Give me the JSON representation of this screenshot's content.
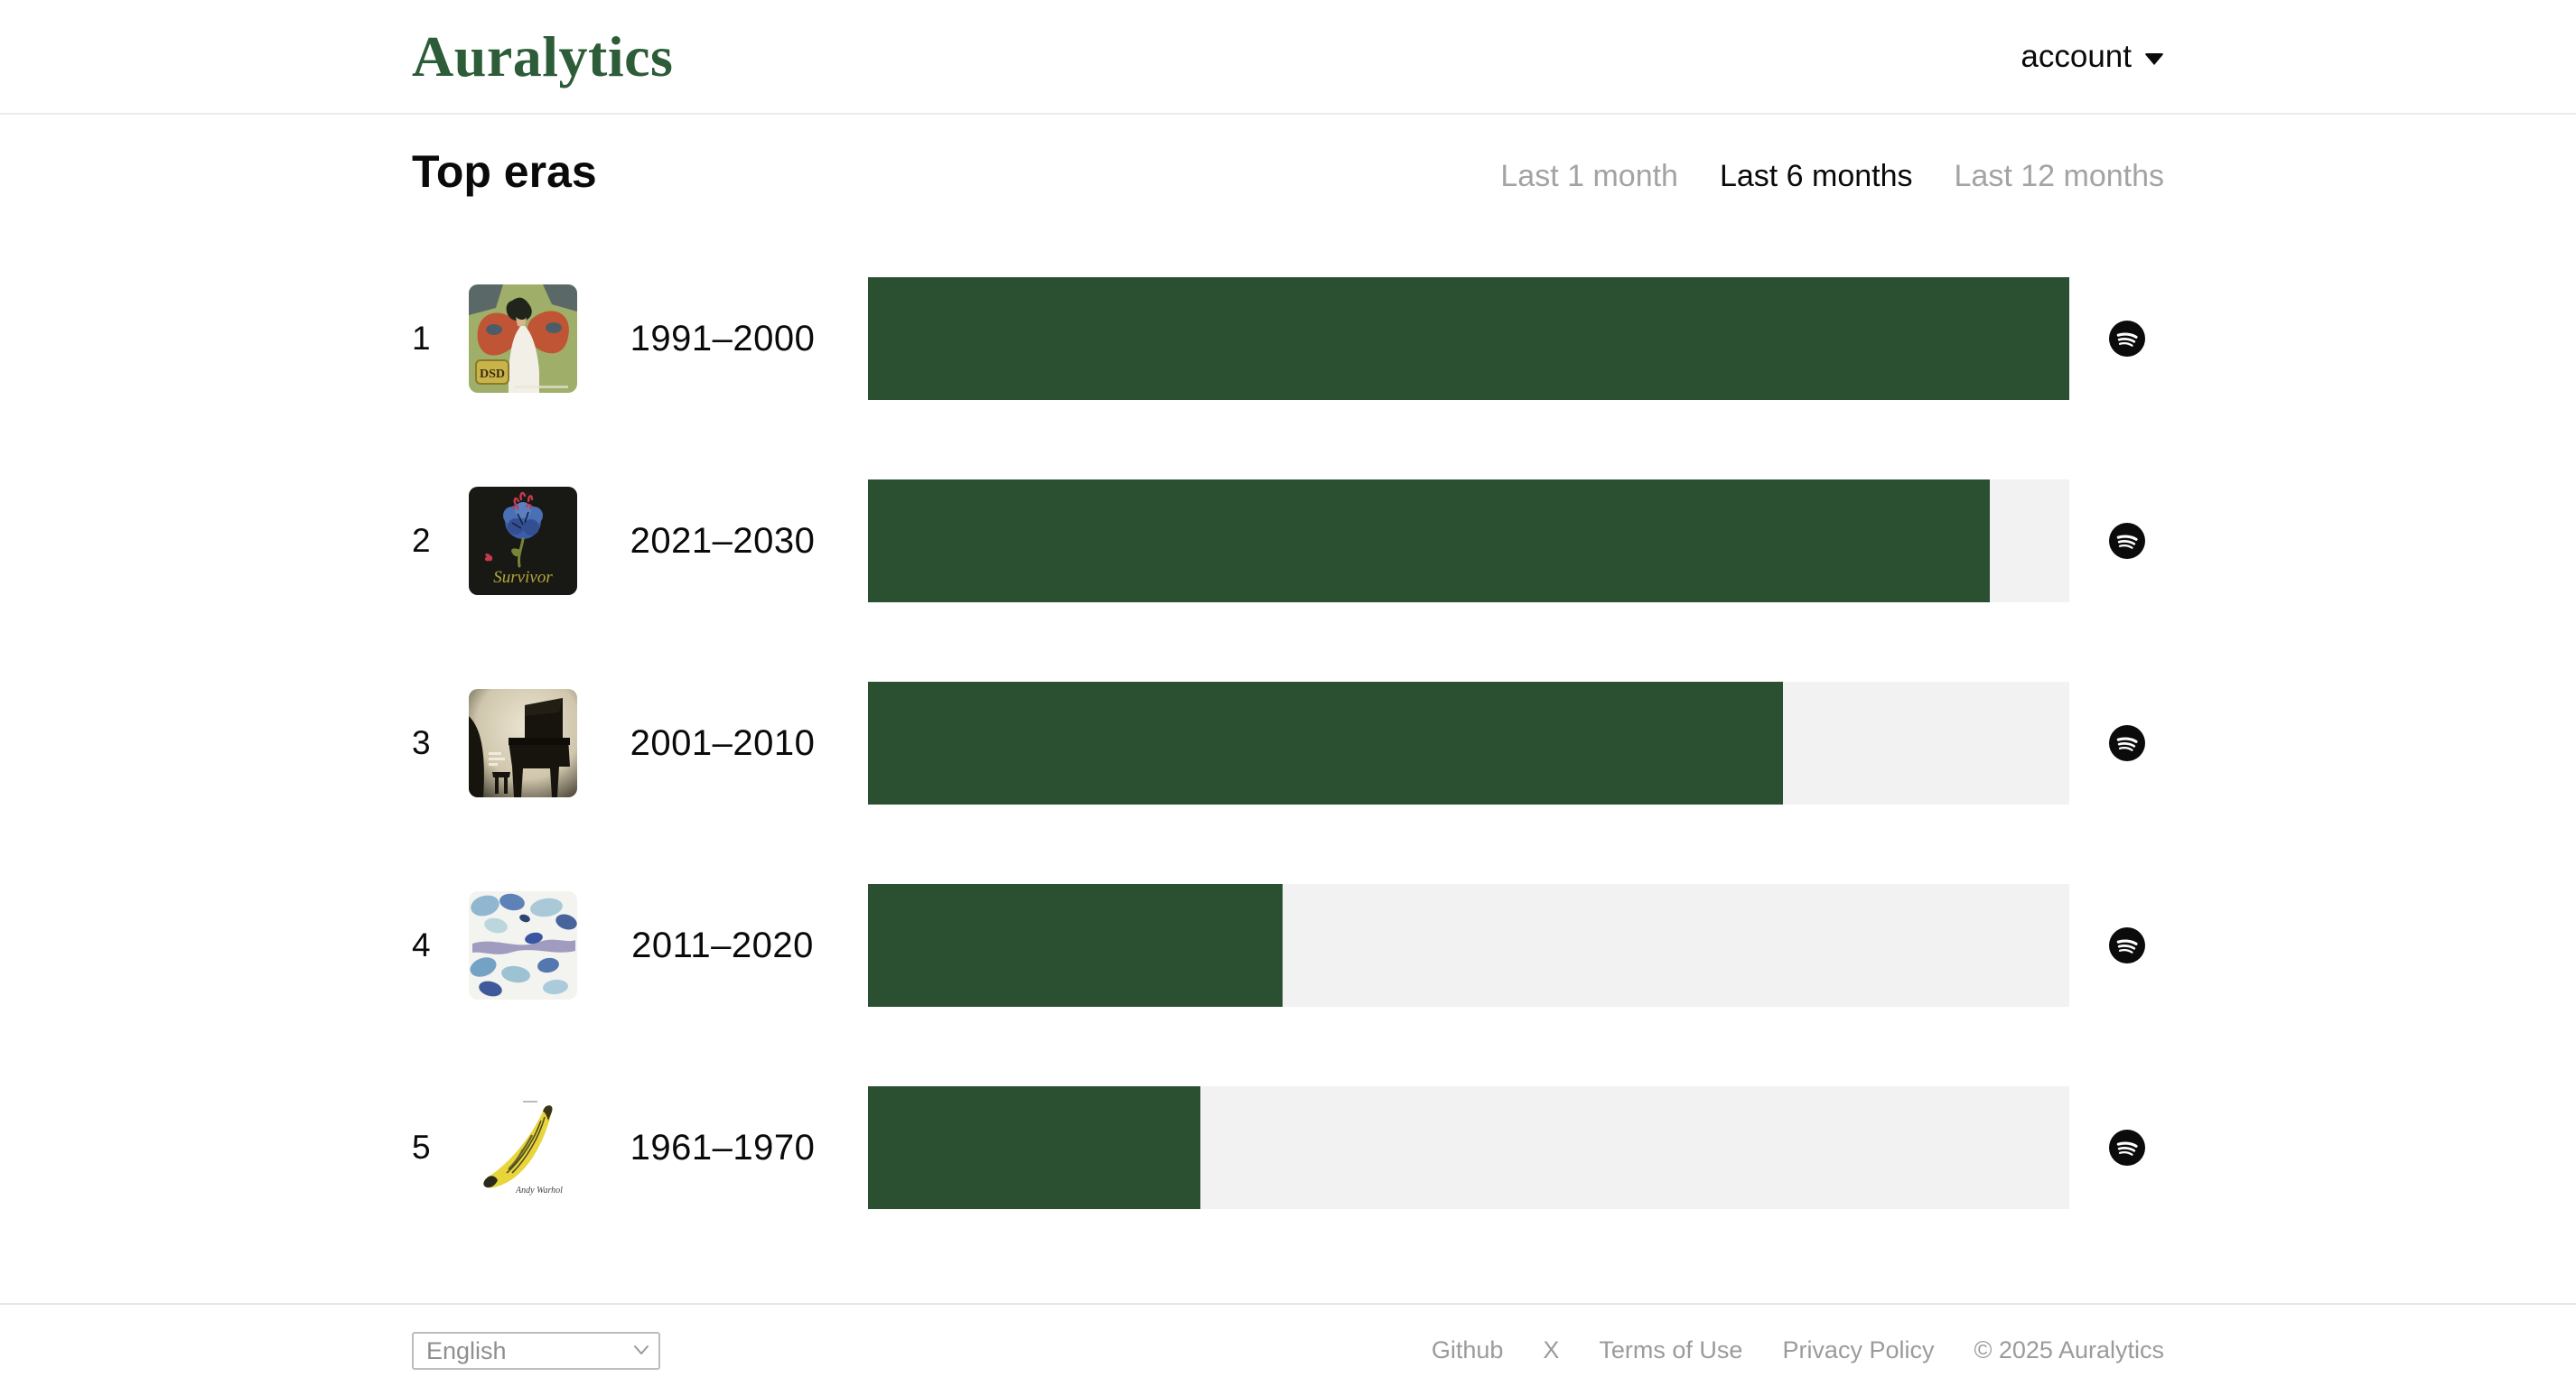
{
  "header": {
    "logo": "Auralytics",
    "account_label": "account"
  },
  "section": {
    "title": "Top eras",
    "tabs": [
      {
        "label": "Last 1 month",
        "active": false
      },
      {
        "label": "Last 6 months",
        "active": true
      },
      {
        "label": "Last 12 months",
        "active": false
      }
    ]
  },
  "chart_data": {
    "type": "bar",
    "orientation": "horizontal",
    "categories": [
      "1991–2000",
      "2021–2030",
      "2001–2010",
      "2011–2020",
      "1961–1970"
    ],
    "values": [
      100,
      93.4,
      76.2,
      34.5,
      27.7
    ],
    "value_unit": "percent of widest bar",
    "bar_color": "#2b5031",
    "track_color": "#f2f2f2",
    "title": "Top eras"
  },
  "rows": [
    {
      "rank": "1",
      "era": "1991–2000",
      "value_pct": 100,
      "art_text": "DSD"
    },
    {
      "rank": "2",
      "era": "2021–2030",
      "value_pct": 93.4,
      "art_text": "Survivor"
    },
    {
      "rank": "3",
      "era": "2001–2010",
      "value_pct": 76.2,
      "art_text": ""
    },
    {
      "rank": "4",
      "era": "2011–2020",
      "value_pct": 34.5,
      "art_text": ""
    },
    {
      "rank": "5",
      "era": "1961–1970",
      "value_pct": 27.7,
      "art_text": "Andy Warhol"
    }
  ],
  "colors": {
    "logo_green": "#2d5c38",
    "bar_green": "#2b5031",
    "bar_track": "#f2f2f2",
    "inactive_tab": "#a3a3a3",
    "footer_text": "#9b9b9b"
  },
  "footer": {
    "language_value": "English",
    "links": [
      "Github",
      "X",
      "Terms of Use",
      "Privacy Policy"
    ],
    "copyright": "© 2025 Auralytics"
  }
}
